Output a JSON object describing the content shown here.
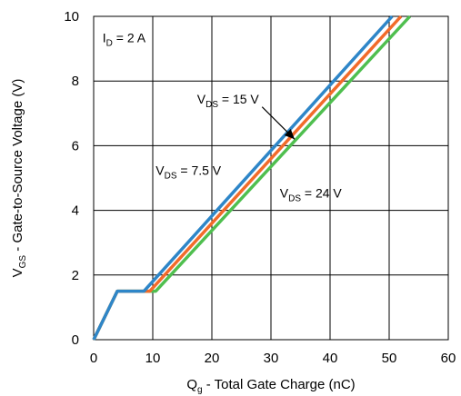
{
  "chart_data": {
    "type": "line",
    "title": "",
    "xlabel": {
      "main": "Q",
      "sub": "g",
      "rest": " - Total Gate Charge (nC)"
    },
    "ylabel": {
      "main": "V",
      "sub": "GS",
      "rest": " - Gate-to-Source Voltage (V)"
    },
    "xlim": [
      0,
      60
    ],
    "ylim": [
      0,
      10
    ],
    "xticks": [
      0,
      10,
      20,
      30,
      40,
      50,
      60
    ],
    "yticks": [
      0,
      2,
      4,
      6,
      8,
      10
    ],
    "xtick_labels": [
      "0",
      "10",
      "20",
      "30",
      "40",
      "50",
      "60"
    ],
    "ytick_labels": [
      "0",
      "2",
      "4",
      "6",
      "8",
      "10"
    ],
    "grid": true,
    "colors": {
      "blue": "#2e86c8",
      "orange": "#f26b2a",
      "green": "#4fbf4f",
      "grid": "#000000"
    },
    "series": [
      {
        "x": [
          0,
          4,
          10.5,
          53.5
        ],
        "y": [
          0,
          1.5,
          1.5,
          10
        ],
        "color": "#4fbf4f"
      },
      {
        "x": [
          0,
          4,
          9.5,
          52
        ],
        "y": [
          0,
          1.5,
          1.5,
          10
        ],
        "color": "#f26b2a"
      },
      {
        "x": [
          0,
          4,
          8.5,
          50.5
        ],
        "y": [
          0,
          1.5,
          1.5,
          10
        ],
        "color": "#2e86c8"
      }
    ],
    "annotations": [
      {
        "id": "id",
        "main": "I",
        "sub": "D",
        "rest": " = 2 A",
        "x": 1.5,
        "y": 9.2
      },
      {
        "id": "vds15",
        "main": "V",
        "sub": "DS",
        "rest": " = 15 V",
        "x": 17.5,
        "y": 7.3
      },
      {
        "id": "vds75",
        "main": "V",
        "sub": "DS",
        "rest": " = 7.5 V",
        "x": 10.5,
        "y": 5.1
      },
      {
        "id": "vds24",
        "main": "V",
        "sub": "DS",
        "rest": " = 24 V",
        "x": 31.5,
        "y": 4.4
      }
    ],
    "arrow": {
      "from": [
        28.5,
        7.2
      ],
      "to": [
        34.0,
        6.2
      ]
    }
  }
}
